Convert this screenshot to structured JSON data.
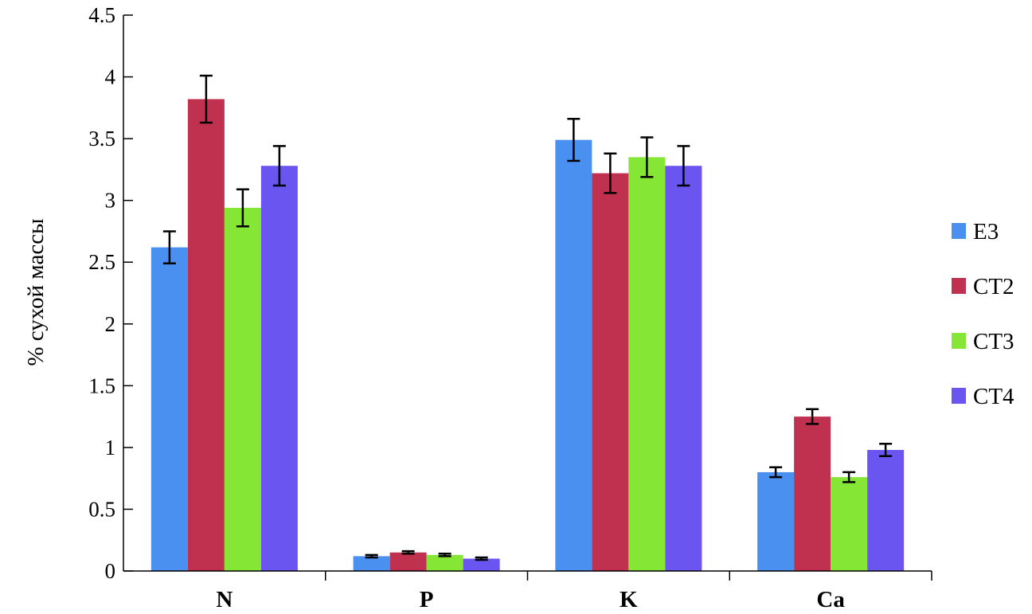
{
  "chart_data": {
    "type": "bar",
    "categories": [
      "N",
      "P",
      "K",
      "Ca"
    ],
    "ylabel": "% сухой массы",
    "xlabel": "",
    "ylim": [
      0,
      4.5
    ],
    "yticks": [
      "0",
      "0.5",
      "1",
      "1.5",
      "2",
      "2.5",
      "3",
      "3.5",
      "4",
      "4.5"
    ],
    "grid": false,
    "legend_position": "right",
    "series": [
      {
        "name": "E3",
        "color": "#4a90f0",
        "values": [
          2.62,
          0.12,
          3.49,
          0.8
        ],
        "errors": [
          0.13,
          0.01,
          0.17,
          0.04
        ]
      },
      {
        "name": "CT2",
        "color": "#c0304f",
        "values": [
          3.82,
          0.15,
          3.22,
          1.25
        ],
        "errors": [
          0.19,
          0.01,
          0.16,
          0.06
        ]
      },
      {
        "name": "CT3",
        "color": "#86e636",
        "values": [
          2.94,
          0.13,
          3.35,
          0.76
        ],
        "errors": [
          0.15,
          0.01,
          0.16,
          0.04
        ]
      },
      {
        "name": "CT4",
        "color": "#6a55f0",
        "values": [
          3.28,
          0.1,
          3.28,
          0.98
        ],
        "errors": [
          0.16,
          0.01,
          0.16,
          0.05
        ]
      }
    ]
  }
}
